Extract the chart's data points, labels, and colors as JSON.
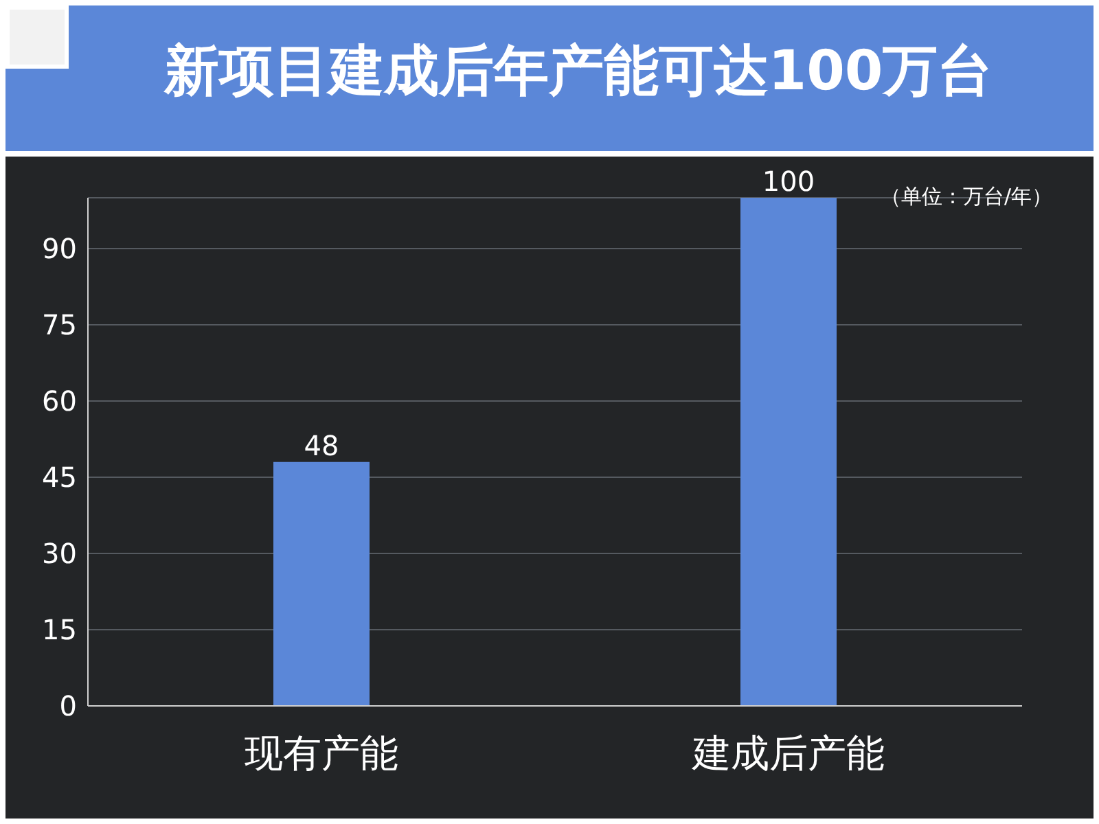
{
  "chart_data": {
    "type": "bar",
    "title": "新项目建成后年产能可达100万台",
    "categories": [
      "现有产能",
      "建成后产能"
    ],
    "values": [
      48,
      100
    ],
    "color": "#5b87d8",
    "ylim": [
      0,
      100
    ],
    "yticks": [
      0,
      15,
      30,
      45,
      60,
      75,
      90
    ],
    "grid": "y",
    "data_labels": true,
    "annotations": [
      "（单位：万台/年）"
    ]
  }
}
